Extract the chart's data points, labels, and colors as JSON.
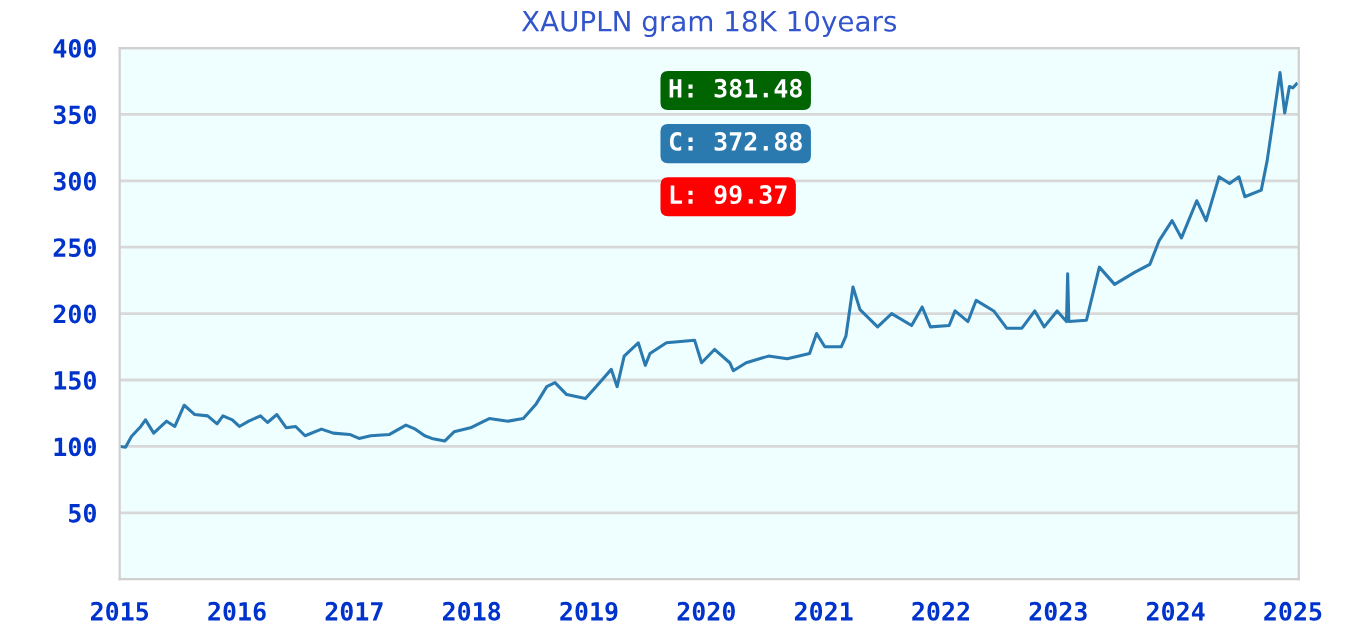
{
  "chart_data": {
    "type": "line",
    "title": "XAUPLN gram 18K 10years",
    "x": [
      2015.0,
      2015.05,
      2015.1,
      2015.18,
      2015.22,
      2015.29,
      2015.4,
      2015.47,
      2015.55,
      2015.64,
      2015.75,
      2015.83,
      2015.88,
      2015.96,
      2016.02,
      2016.1,
      2016.2,
      2016.26,
      2016.34,
      2016.42,
      2016.5,
      2016.58,
      2016.72,
      2016.82,
      2016.96,
      2017.04,
      2017.14,
      2017.3,
      2017.44,
      2017.52,
      2017.6,
      2017.66,
      2017.77,
      2017.85,
      2017.99,
      2018.15,
      2018.31,
      2018.44,
      2018.55,
      2018.64,
      2018.71,
      2018.81,
      2018.97,
      2019.06,
      2019.19,
      2019.24,
      2019.3,
      2019.42,
      2019.48,
      2019.52,
      2019.66,
      2019.9,
      2019.96,
      2020.07,
      2020.2,
      2020.23,
      2020.34,
      2020.53,
      2020.69,
      2020.88,
      2020.94,
      2021.01,
      2021.15,
      2021.19,
      2021.25,
      2021.31,
      2021.46,
      2021.58,
      2021.75,
      2021.84,
      2021.91,
      2022.07,
      2022.12,
      2022.23,
      2022.3,
      2022.45,
      2022.56,
      2022.69,
      2022.8,
      2022.88,
      2022.99,
      2023.07,
      2023.08,
      2023.09,
      2023.24,
      2023.35,
      2023.48,
      2023.65,
      2023.78,
      2023.86,
      2023.97,
      2024.05,
      2024.18,
      2024.26,
      2024.37,
      2024.46,
      2024.54,
      2024.59,
      2024.73,
      2024.78,
      2024.89,
      2024.93,
      2024.97,
      2025.0,
      2025.03
    ],
    "series": [
      {
        "color": "#2a7ab0",
        "values": [
          100,
          99.4,
          107.5,
          115,
          120,
          110,
          119,
          115,
          131,
          124,
          123,
          117,
          123,
          120,
          115,
          119,
          123,
          118,
          124,
          114,
          115,
          108,
          113,
          110,
          109,
          106,
          108,
          109,
          116,
          113,
          108,
          106,
          104,
          111,
          114,
          121,
          119,
          121,
          132,
          145,
          148,
          139,
          136,
          145,
          158,
          145,
          168,
          178,
          161,
          170,
          178,
          180,
          163,
          173,
          163,
          157,
          163,
          168,
          166,
          170,
          185,
          175,
          175,
          183,
          220,
          203,
          190,
          200,
          191,
          205,
          190,
          191,
          202,
          194,
          210,
          202,
          189,
          189,
          202,
          190,
          202,
          194,
          230,
          194,
          195,
          235,
          222,
          231,
          237,
          255,
          270,
          257,
          285,
          270,
          303,
          298,
          303,
          288,
          293,
          315,
          381.48,
          351,
          371,
          370,
          372.88
        ]
      }
    ],
    "xlim": [
      2015,
      2025.05
    ],
    "xticks": [
      {
        "value": 2015,
        "label": "2015"
      },
      {
        "value": 2016,
        "label": "2016"
      },
      {
        "value": 2017,
        "label": "2017"
      },
      {
        "value": 2018,
        "label": "2018"
      },
      {
        "value": 2019,
        "label": "2019"
      },
      {
        "value": 2020,
        "label": "2020"
      },
      {
        "value": 2021,
        "label": "2021"
      },
      {
        "value": 2022,
        "label": "2022"
      },
      {
        "value": 2023,
        "label": "2023"
      },
      {
        "value": 2024,
        "label": "2024"
      },
      {
        "value": 2025,
        "label": "2025"
      }
    ],
    "ylim": [
      0,
      400
    ],
    "yticks": [
      50,
      100,
      150,
      200,
      250,
      300,
      350,
      400
    ],
    "grid": "y",
    "annotations": [
      "H: 381.48",
      "C: 372.88",
      "L: 99.37"
    ]
  }
}
